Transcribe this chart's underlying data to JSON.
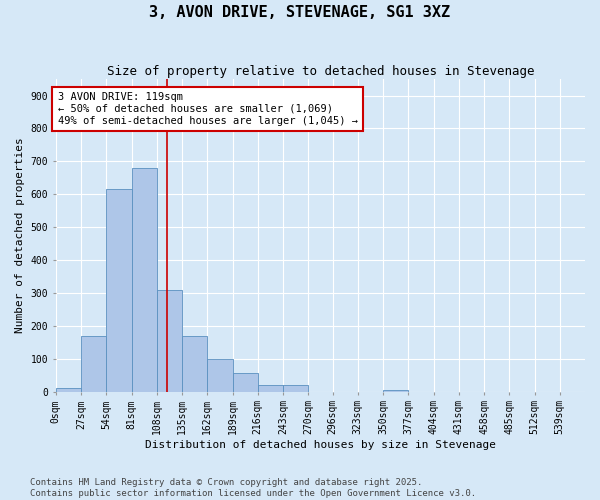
{
  "title": "3, AVON DRIVE, STEVENAGE, SG1 3XZ",
  "subtitle": "Size of property relative to detached houses in Stevenage",
  "xlabel": "Distribution of detached houses by size in Stevenage",
  "ylabel": "Number of detached properties",
  "footnote1": "Contains HM Land Registry data © Crown copyright and database right 2025.",
  "footnote2": "Contains public sector information licensed under the Open Government Licence v3.0.",
  "bin_labels": [
    "0sqm",
    "27sqm",
    "54sqm",
    "81sqm",
    "108sqm",
    "135sqm",
    "162sqm",
    "189sqm",
    "216sqm",
    "243sqm",
    "270sqm",
    "296sqm",
    "323sqm",
    "350sqm",
    "377sqm",
    "404sqm",
    "431sqm",
    "458sqm",
    "485sqm",
    "512sqm",
    "539sqm"
  ],
  "bin_edges": [
    0,
    27,
    54,
    81,
    108,
    135,
    162,
    189,
    216,
    243,
    270,
    296,
    323,
    350,
    377,
    404,
    431,
    458,
    485,
    512,
    539
  ],
  "bar_heights": [
    10,
    170,
    615,
    680,
    310,
    170,
    100,
    55,
    20,
    20,
    0,
    0,
    0,
    5,
    0,
    0,
    0,
    0,
    0,
    0
  ],
  "bar_color": "#aec6e8",
  "bar_edge_color": "#5a90c0",
  "vline_x": 119,
  "vline_color": "#cc0000",
  "annotation_text": "3 AVON DRIVE: 119sqm\n← 50% of detached houses are smaller (1,069)\n49% of semi-detached houses are larger (1,045) →",
  "annotation_box_color": "#ffffff",
  "annotation_border_color": "#cc0000",
  "ylim": [
    0,
    950
  ],
  "yticks": [
    0,
    100,
    200,
    300,
    400,
    500,
    600,
    700,
    800,
    900
  ],
  "background_color": "#d6e8f7",
  "grid_color": "#ffffff",
  "title_fontsize": 11,
  "subtitle_fontsize": 9,
  "axis_label_fontsize": 8,
  "tick_fontsize": 7,
  "annotation_fontsize": 7.5,
  "footnote_fontsize": 6.5
}
